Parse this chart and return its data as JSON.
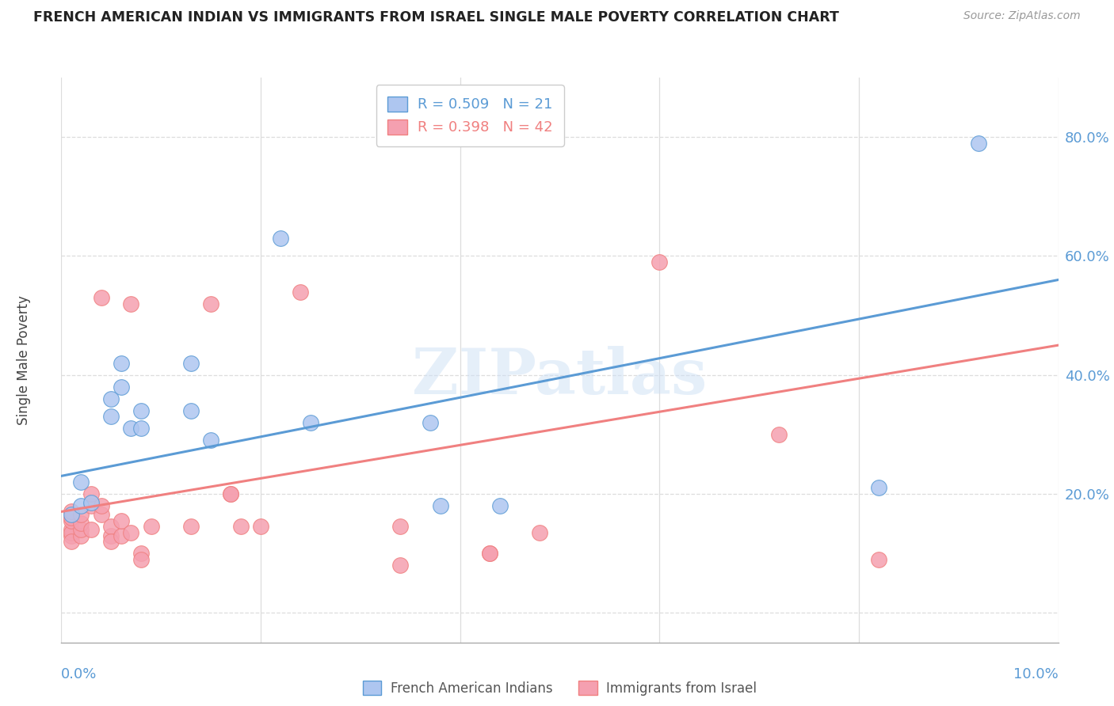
{
  "title": "FRENCH AMERICAN INDIAN VS IMMIGRANTS FROM ISRAEL SINGLE MALE POVERTY CORRELATION CHART",
  "source": "Source: ZipAtlas.com",
  "ylabel": "Single Male Poverty",
  "y_ticks": [
    0.0,
    0.2,
    0.4,
    0.6,
    0.8
  ],
  "y_tick_labels": [
    "",
    "20.0%",
    "40.0%",
    "60.0%",
    "80.0%"
  ],
  "x_range": [
    0.0,
    0.1
  ],
  "y_range": [
    -0.05,
    0.9
  ],
  "watermark": "ZIPatlas",
  "blue_color": "#aec6f0",
  "pink_color": "#f5a0b0",
  "blue_line_color": "#5b9bd5",
  "pink_line_color": "#f08080",
  "blue_scatter": [
    [
      0.001,
      0.165
    ],
    [
      0.002,
      0.18
    ],
    [
      0.002,
      0.22
    ],
    [
      0.003,
      0.185
    ],
    [
      0.005,
      0.33
    ],
    [
      0.005,
      0.36
    ],
    [
      0.006,
      0.42
    ],
    [
      0.006,
      0.38
    ],
    [
      0.007,
      0.31
    ],
    [
      0.008,
      0.31
    ],
    [
      0.008,
      0.34
    ],
    [
      0.013,
      0.42
    ],
    [
      0.013,
      0.34
    ],
    [
      0.015,
      0.29
    ],
    [
      0.022,
      0.63
    ],
    [
      0.025,
      0.32
    ],
    [
      0.037,
      0.32
    ],
    [
      0.038,
      0.18
    ],
    [
      0.044,
      0.18
    ],
    [
      0.082,
      0.21
    ],
    [
      0.092,
      0.79
    ]
  ],
  "pink_scatter": [
    [
      0.001,
      0.13
    ],
    [
      0.001,
      0.14
    ],
    [
      0.001,
      0.135
    ],
    [
      0.001,
      0.12
    ],
    [
      0.001,
      0.155
    ],
    [
      0.001,
      0.16
    ],
    [
      0.001,
      0.17
    ],
    [
      0.002,
      0.13
    ],
    [
      0.002,
      0.14
    ],
    [
      0.002,
      0.15
    ],
    [
      0.002,
      0.165
    ],
    [
      0.003,
      0.14
    ],
    [
      0.003,
      0.18
    ],
    [
      0.003,
      0.2
    ],
    [
      0.004,
      0.165
    ],
    [
      0.004,
      0.18
    ],
    [
      0.004,
      0.53
    ],
    [
      0.005,
      0.13
    ],
    [
      0.005,
      0.145
    ],
    [
      0.005,
      0.12
    ],
    [
      0.006,
      0.13
    ],
    [
      0.006,
      0.155
    ],
    [
      0.007,
      0.52
    ],
    [
      0.007,
      0.135
    ],
    [
      0.008,
      0.1
    ],
    [
      0.008,
      0.09
    ],
    [
      0.009,
      0.145
    ],
    [
      0.013,
      0.145
    ],
    [
      0.015,
      0.52
    ],
    [
      0.017,
      0.2
    ],
    [
      0.017,
      0.2
    ],
    [
      0.018,
      0.145
    ],
    [
      0.02,
      0.145
    ],
    [
      0.024,
      0.54
    ],
    [
      0.034,
      0.145
    ],
    [
      0.034,
      0.08
    ],
    [
      0.043,
      0.1
    ],
    [
      0.043,
      0.1
    ],
    [
      0.048,
      0.135
    ],
    [
      0.06,
      0.59
    ],
    [
      0.072,
      0.3
    ],
    [
      0.082,
      0.09
    ]
  ],
  "blue_line_x": [
    0.0,
    0.1
  ],
  "blue_line_y": [
    0.23,
    0.56
  ],
  "pink_line_x": [
    0.0,
    0.1
  ],
  "pink_line_y": [
    0.17,
    0.45
  ],
  "grid_color": "#dddddd",
  "background_color": "#ffffff",
  "x_grid_vals": [
    0.0,
    0.02,
    0.04,
    0.06,
    0.08,
    0.1
  ],
  "label_blue": "French American Indians",
  "label_pink": "Immigrants from Israel"
}
